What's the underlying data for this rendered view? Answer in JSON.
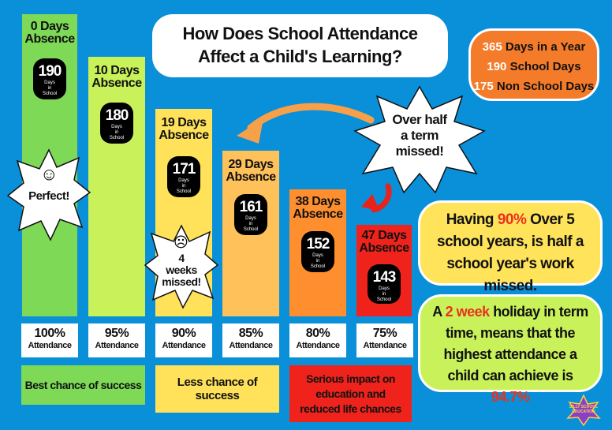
{
  "title": "How Does School Attendance Affect a Child's Learning?",
  "facts": [
    {
      "num": "365",
      "text": "Days in a Year"
    },
    {
      "num": "190",
      "text": "School Days"
    },
    {
      "num": "175",
      "text": "Non School Days"
    }
  ],
  "bars": [
    {
      "absence": "0 Days",
      "absence_word": "Absence",
      "days": "190",
      "days_label": "Days in School",
      "attendance": "100%",
      "attendance_word": "Attendance",
      "color": "#7ed957"
    },
    {
      "absence": "10 Days",
      "absence_word": "Absence",
      "days": "180",
      "days_label": "Days in School",
      "attendance": "95%",
      "attendance_word": "Attendance",
      "color": "#c9f25a"
    },
    {
      "absence": "19 Days",
      "absence_word": "Absence",
      "days": "171",
      "days_label": "Days in School",
      "attendance": "90%",
      "attendance_word": "Attendance",
      "color": "#ffe25a"
    },
    {
      "absence": "29 Days",
      "absence_word": "Absence",
      "days": "161",
      "days_label": "Days in School",
      "attendance": "85%",
      "attendance_word": "Attendance",
      "color": "#ffc15a"
    },
    {
      "absence": "38 Days",
      "absence_word": "Absence",
      "days": "152",
      "days_label": "Days in School",
      "attendance": "80%",
      "attendance_word": "Attendance",
      "color": "#ff8f2e"
    },
    {
      "absence": "47 Days",
      "absence_word": "Absence",
      "days": "143",
      "days_label": "Days in School",
      "attendance": "75%",
      "attendance_word": "Attendance",
      "color": "#f0231c"
    }
  ],
  "stars": {
    "perfect": "Perfect!",
    "four_weeks_line1": "4",
    "four_weeks_line2": "weeks",
    "four_weeks_line3": "missed!",
    "half_term_line1": "Over half",
    "half_term_line2": "a term",
    "half_term_line3": "missed!"
  },
  "outcomes": {
    "best": "Best chance of success",
    "less": "Less chance of success",
    "serious_line1": "Serious impact on",
    "serious_line2": "education and",
    "serious_line3": "reduced life chances"
  },
  "info1": {
    "before": "Having",
    "highlight": "90%",
    "after": "Over 5 school years, is half a school year's work missed."
  },
  "info2": {
    "before": "A",
    "highlight": "2 week",
    "middle": "holiday in term time, means that the highest attendance a child can achieve is",
    "highlight2": "94.7%"
  },
  "logo_text": "SILLY SCHOOL EDUCATION",
  "colors": {
    "background": "#0a8fd9",
    "facts_bg": "#f47b2a",
    "info_bg": "#ffe35a",
    "info2_bg": "#c9f25a",
    "highlight_red": "#e8321e",
    "arrow_orange": "#f7a04a",
    "arrow_red": "#e8231c"
  }
}
